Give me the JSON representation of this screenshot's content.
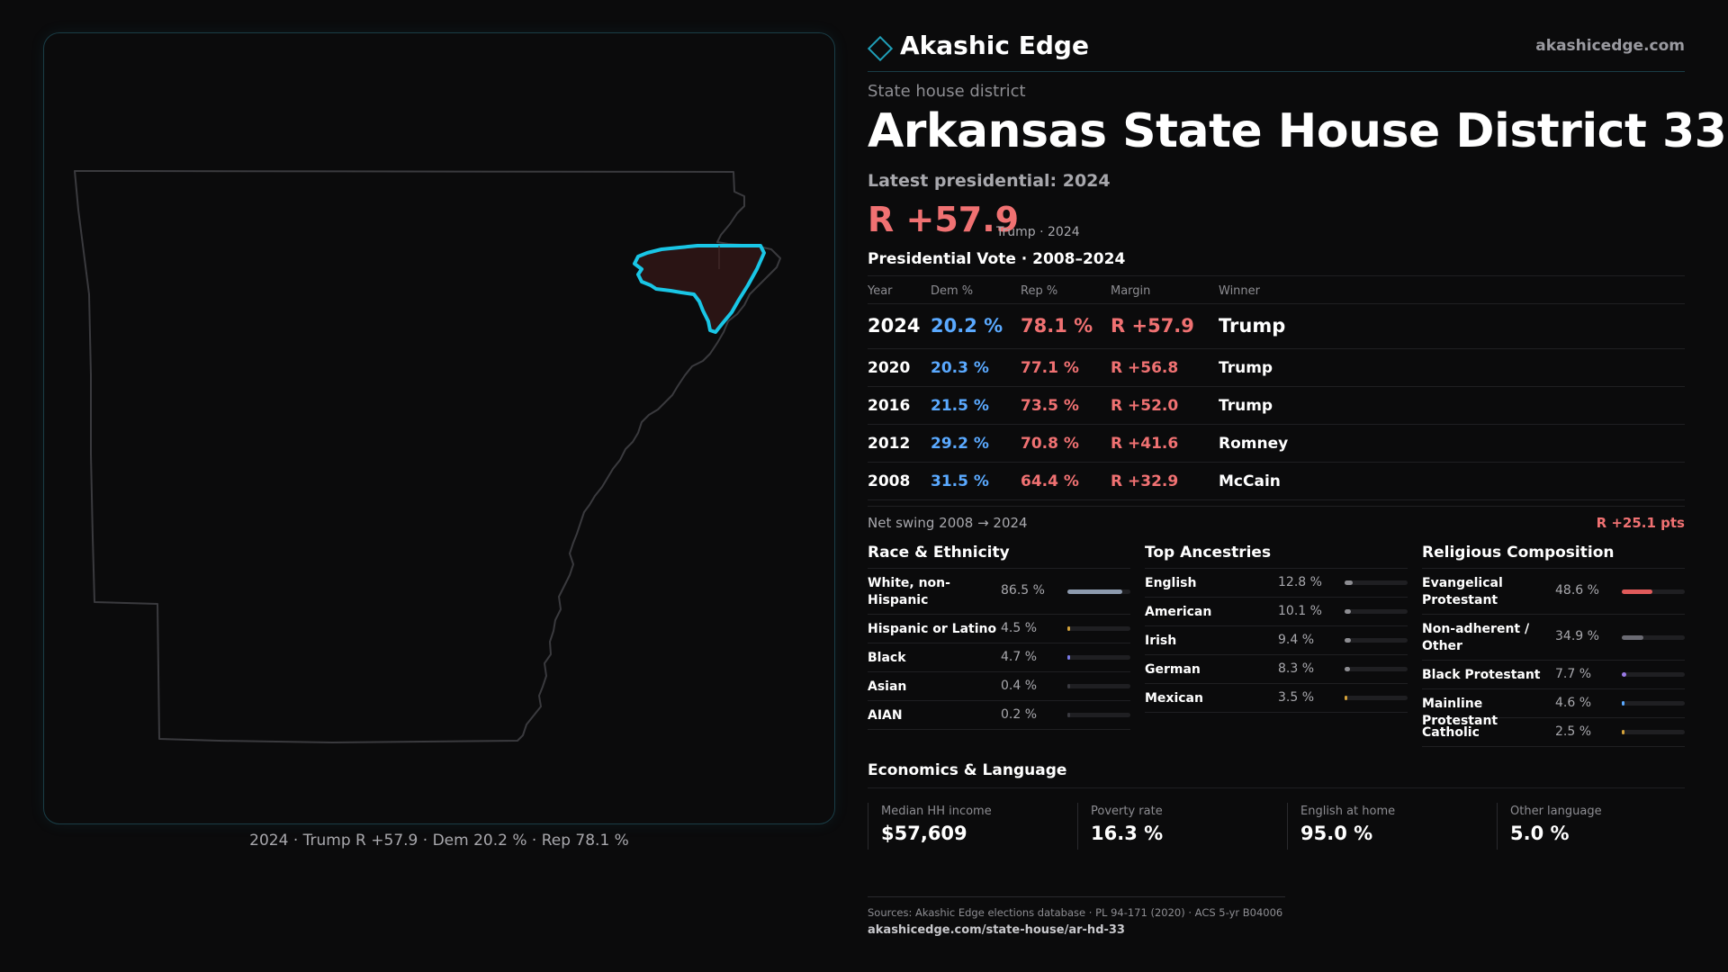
{
  "brand": {
    "name": "Akashic Edge",
    "url": "akashicedge.com",
    "accent": "#1f9fb8"
  },
  "header": {
    "kind": "State house district",
    "title": "Arkansas State House District 33",
    "latest": "Latest presidential: 2024",
    "margin": "R +57.9",
    "margin_note": "Trump · 2024"
  },
  "map": {
    "caption": "2024 · Trump R +57.9 · Dem 20.2 % · Rep 78.1 %",
    "highlight_color": "#19c6e6",
    "highlight_fill": "#2a1414"
  },
  "presidential": {
    "title": "Presidential Vote · 2008–2024",
    "headers": {
      "year": "Year",
      "dem": "Dem %",
      "rep": "Rep %",
      "margin": "Margin",
      "winner": "Winner"
    },
    "rows": [
      {
        "year": "2024",
        "dem": "20.2 %",
        "rep": "78.1 %",
        "margin": "R +57.9",
        "winner": "Trump"
      },
      {
        "year": "2020",
        "dem": "20.3 %",
        "rep": "77.1 %",
        "margin": "R +56.8",
        "winner": "Trump"
      },
      {
        "year": "2016",
        "dem": "21.5 %",
        "rep": "73.5 %",
        "margin": "R +52.0",
        "winner": "Trump"
      },
      {
        "year": "2012",
        "dem": "29.2 %",
        "rep": "70.8 %",
        "margin": "R +41.6",
        "winner": "Romney"
      },
      {
        "year": "2008",
        "dem": "31.5 %",
        "rep": "64.4 %",
        "margin": "R +32.9",
        "winner": "McCain"
      }
    ],
    "swing_label": "Net swing 2008 → 2024",
    "swing_value": "R +25.1 pts"
  },
  "race": {
    "title": "Race & Ethnicity",
    "items": [
      {
        "label": "White, non-Hispanic",
        "pct": "86.5 %",
        "value": 86.5,
        "color": "#8d9aae"
      },
      {
        "label": "Hispanic or Latino",
        "pct": "4.5 %",
        "value": 4.5,
        "color": "#d4a23a"
      },
      {
        "label": "Black",
        "pct": "4.7 %",
        "value": 4.7,
        "color": "#7a7ae6"
      },
      {
        "label": "Asian",
        "pct": "0.4 %",
        "value": 0.4,
        "color": "#3a3a40"
      },
      {
        "label": "AIAN",
        "pct": "0.2 %",
        "value": 0.2,
        "color": "#3a3a40"
      }
    ]
  },
  "ancestry": {
    "title": "Top Ancestries",
    "items": [
      {
        "label": "English",
        "pct": "12.8 %",
        "value": 12.8,
        "color": "#8d8d92"
      },
      {
        "label": "American",
        "pct": "10.1 %",
        "value": 10.1,
        "color": "#8d8d92"
      },
      {
        "label": "Irish",
        "pct": "9.4 %",
        "value": 9.4,
        "color": "#8d8d92"
      },
      {
        "label": "German",
        "pct": "8.3 %",
        "value": 8.3,
        "color": "#8d8d92"
      },
      {
        "label": "Mexican",
        "pct": "3.5 %",
        "value": 3.5,
        "color": "#d4a23a"
      }
    ]
  },
  "religion": {
    "title": "Religious Composition",
    "items": [
      {
        "label": "Evangelical Protestant",
        "pct": "48.6 %",
        "value": 48.6,
        "color": "#e05a5a"
      },
      {
        "label": "Non-adherent / Other",
        "pct": "34.9 %",
        "value": 34.9,
        "color": "#6b6b73"
      },
      {
        "label": "Black Protestant",
        "pct": "7.7 %",
        "value": 7.7,
        "color": "#9a7ae6"
      },
      {
        "label": "Mainline Protestant",
        "pct": "4.6 %",
        "value": 4.6,
        "color": "#5aa9ff"
      },
      {
        "label": "Catholic",
        "pct": "2.5 %",
        "value": 2.5,
        "color": "#d4a23a"
      }
    ]
  },
  "economics": {
    "title": "Economics & Language",
    "items": [
      {
        "label": "Median HH income",
        "value": "$57,609"
      },
      {
        "label": "Poverty rate",
        "value": "16.3 %"
      },
      {
        "label": "English at home",
        "value": "95.0 %"
      },
      {
        "label": "Other language",
        "value": "5.0 %"
      }
    ]
  },
  "sources": {
    "line": "Sources: Akashic Edge elections database · PL 94-171 (2020) · ACS 5-yr B04006",
    "url": "akashicedge.com/state-house/ar-hd-33"
  }
}
